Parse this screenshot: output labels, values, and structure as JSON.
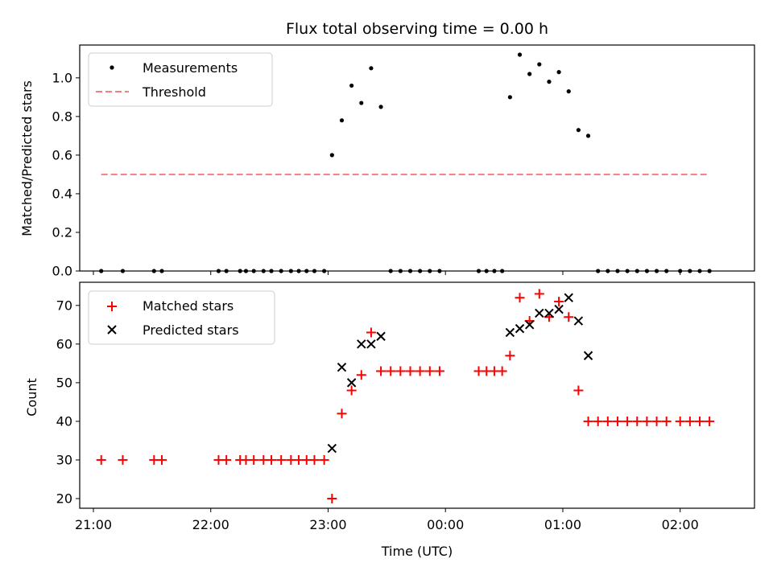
{
  "chart_data": [
    {
      "type": "scatter",
      "title": "Flux total observing time = 0.00 h",
      "ylabel": "Matched/Predicted stars",
      "xlabel": "",
      "xlim": [
        "20:53",
        "02:38"
      ],
      "ylim": [
        0,
        1.17
      ],
      "yticks": [
        0.0,
        0.2,
        0.4,
        0.6,
        0.8,
        1.0
      ],
      "legend_location": "top-left",
      "series": [
        {
          "name": "Measurements",
          "marker": "dot",
          "color": "#000000",
          "points": [
            [
              "21:04",
              0
            ],
            [
              "21:15",
              0
            ],
            [
              "21:31",
              0
            ],
            [
              "21:35",
              0
            ],
            [
              "22:04",
              0
            ],
            [
              "22:08",
              0
            ],
            [
              "22:15",
              0
            ],
            [
              "22:18",
              0
            ],
            [
              "22:22",
              0
            ],
            [
              "22:27",
              0
            ],
            [
              "22:31",
              0
            ],
            [
              "22:36",
              0
            ],
            [
              "22:41",
              0
            ],
            [
              "22:45",
              0
            ],
            [
              "22:49",
              0
            ],
            [
              "22:53",
              0
            ],
            [
              "22:58",
              0
            ],
            [
              "23:02",
              0.6
            ],
            [
              "23:07",
              0.78
            ],
            [
              "23:12",
              0.96
            ],
            [
              "23:17",
              0.87
            ],
            [
              "23:22",
              1.05
            ],
            [
              "23:27",
              0.85
            ],
            [
              "23:32",
              0
            ],
            [
              "23:37",
              0
            ],
            [
              "23:42",
              0
            ],
            [
              "23:47",
              0
            ],
            [
              "23:52",
              0
            ],
            [
              "23:57",
              0
            ],
            [
              "00:17",
              0
            ],
            [
              "00:21",
              0
            ],
            [
              "00:25",
              0
            ],
            [
              "00:29",
              0
            ],
            [
              "00:33",
              0.9
            ],
            [
              "00:38",
              1.12
            ],
            [
              "00:43",
              1.02
            ],
            [
              "00:48",
              1.07
            ],
            [
              "00:53",
              0.98
            ],
            [
              "00:58",
              1.03
            ],
            [
              "01:03",
              0.93
            ],
            [
              "01:08",
              0.73
            ],
            [
              "01:13",
              0.7
            ],
            [
              "01:18",
              0
            ],
            [
              "01:23",
              0
            ],
            [
              "01:28",
              0
            ],
            [
              "01:33",
              0
            ],
            [
              "01:38",
              0
            ],
            [
              "01:43",
              0
            ],
            [
              "01:48",
              0
            ],
            [
              "01:53",
              0
            ],
            [
              "02:00",
              0
            ],
            [
              "02:05",
              0
            ],
            [
              "02:10",
              0
            ],
            [
              "02:15",
              0
            ]
          ]
        },
        {
          "name": "Threshold",
          "marker": "dashed-line",
          "color": "#f08080",
          "points": [
            [
              "21:04",
              0.5
            ],
            [
              "02:15",
              0.5
            ]
          ]
        }
      ]
    },
    {
      "type": "scatter",
      "title": "",
      "ylabel": "Count",
      "xlabel": "Time (UTC)",
      "xlim": [
        "20:53",
        "02:38"
      ],
      "ylim": [
        17.5,
        76
      ],
      "yticks": [
        20,
        30,
        40,
        50,
        60,
        70
      ],
      "xticks": [
        "21:00",
        "22:00",
        "23:00",
        "00:00",
        "01:00",
        "02:00"
      ],
      "legend_location": "top-left",
      "series": [
        {
          "name": "Matched stars",
          "marker": "plus",
          "color": "#ff0000",
          "points": [
            [
              "21:04",
              30
            ],
            [
              "21:15",
              30
            ],
            [
              "21:31",
              30
            ],
            [
              "21:35",
              30
            ],
            [
              "22:04",
              30
            ],
            [
              "22:08",
              30
            ],
            [
              "22:15",
              30
            ],
            [
              "22:18",
              30
            ],
            [
              "22:22",
              30
            ],
            [
              "22:27",
              30
            ],
            [
              "22:31",
              30
            ],
            [
              "22:36",
              30
            ],
            [
              "22:41",
              30
            ],
            [
              "22:45",
              30
            ],
            [
              "22:49",
              30
            ],
            [
              "22:53",
              30
            ],
            [
              "22:58",
              30
            ],
            [
              "23:02",
              20
            ],
            [
              "23:07",
              42
            ],
            [
              "23:12",
              48
            ],
            [
              "23:17",
              52
            ],
            [
              "23:22",
              63
            ],
            [
              "23:27",
              53
            ],
            [
              "23:32",
              53
            ],
            [
              "23:37",
              53
            ],
            [
              "23:42",
              53
            ],
            [
              "23:47",
              53
            ],
            [
              "23:52",
              53
            ],
            [
              "23:57",
              53
            ],
            [
              "00:17",
              53
            ],
            [
              "00:21",
              53
            ],
            [
              "00:25",
              53
            ],
            [
              "00:29",
              53
            ],
            [
              "00:33",
              57
            ],
            [
              "00:38",
              72
            ],
            [
              "00:43",
              66
            ],
            [
              "00:48",
              73
            ],
            [
              "00:53",
              67
            ],
            [
              "00:58",
              71
            ],
            [
              "01:03",
              67
            ],
            [
              "01:08",
              48
            ],
            [
              "01:13",
              40
            ],
            [
              "01:18",
              40
            ],
            [
              "01:23",
              40
            ],
            [
              "01:28",
              40
            ],
            [
              "01:33",
              40
            ],
            [
              "01:38",
              40
            ],
            [
              "01:43",
              40
            ],
            [
              "01:48",
              40
            ],
            [
              "01:53",
              40
            ],
            [
              "02:00",
              40
            ],
            [
              "02:05",
              40
            ],
            [
              "02:10",
              40
            ],
            [
              "02:15",
              40
            ]
          ]
        },
        {
          "name": "Predicted stars",
          "marker": "x",
          "color": "#000000",
          "points": [
            [
              "23:02",
              33
            ],
            [
              "23:07",
              54
            ],
            [
              "23:12",
              50
            ],
            [
              "23:17",
              60
            ],
            [
              "23:22",
              60
            ],
            [
              "23:27",
              62
            ],
            [
              "00:33",
              63
            ],
            [
              "00:38",
              64
            ],
            [
              "00:43",
              65
            ],
            [
              "00:48",
              68
            ],
            [
              "00:53",
              68
            ],
            [
              "00:58",
              69
            ],
            [
              "01:03",
              72
            ],
            [
              "01:08",
              66
            ],
            [
              "01:13",
              57
            ]
          ]
        }
      ]
    }
  ]
}
